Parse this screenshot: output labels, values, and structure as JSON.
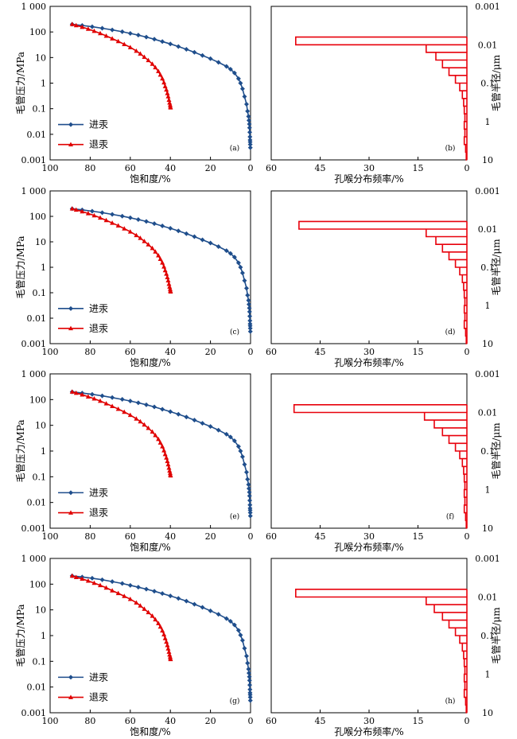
{
  "colors": {
    "intrusion": "#1f4e8c",
    "withdrawal": "#e00000",
    "pore": "#e8000b",
    "axis": "#000000"
  },
  "labels": {
    "ylabel_left": "毛管压力/MPa",
    "xlabel_left": "饱和度/%",
    "ylabel_right": "毛管半径/μm",
    "xlabel_right": "孔喉分布频率/%",
    "legend_intrusion": "进汞",
    "legend_withdrawal": "退汞"
  },
  "panels": [
    {
      "left_tag": "(a)",
      "right_tag": "(b)"
    },
    {
      "left_tag": "(c)",
      "right_tag": "(d)"
    },
    {
      "left_tag": "(e)",
      "right_tag": "(f)"
    },
    {
      "left_tag": "(g)",
      "right_tag": "(h)"
    }
  ],
  "chart_data": [
    {
      "type": "line",
      "panel": "(a)",
      "xlabel": "饱和度/%",
      "ylabel": "毛管压力/MPa",
      "xlim": [
        100,
        0
      ],
      "ylim": [
        0.001,
        1000
      ],
      "yscale": "log",
      "x_ticks": [
        "100",
        "80",
        "60",
        "40",
        "20",
        "0"
      ],
      "y_ticks": [
        "1 000",
        "100",
        "10",
        "1",
        "0.1",
        "0.01",
        "0.001"
      ],
      "series": [
        {
          "name": "进汞",
          "marker": "diamond",
          "x": [
            89,
            84,
            79,
            74,
            69,
            64,
            60,
            56,
            52,
            48,
            44,
            40,
            36,
            32,
            28,
            24,
            20,
            16,
            12,
            10,
            8,
            6,
            5,
            4,
            3,
            2,
            1.5,
            1,
            0.8,
            0.6,
            0.5,
            0.4,
            0.3,
            0.25,
            0.2,
            0.15,
            0.1
          ],
          "y": [
            200,
            180,
            160,
            140,
            120,
            102,
            88,
            75,
            63,
            52,
            42,
            34,
            27,
            21,
            16,
            12,
            9,
            6.5,
            4.5,
            3.5,
            2.5,
            1.5,
            1,
            0.6,
            0.3,
            0.15,
            0.08,
            0.05,
            0.035,
            0.025,
            0.018,
            0.012,
            0.008,
            0.006,
            0.005,
            0.004,
            0.003
          ]
        },
        {
          "name": "退汞",
          "marker": "triangle",
          "x": [
            89,
            87,
            84,
            81,
            78,
            75,
            72,
            69,
            66,
            63,
            60,
            57,
            55,
            53,
            51,
            49,
            47.5,
            46,
            45,
            44,
            43.2,
            42.6,
            42,
            41.5,
            41.1,
            40.7,
            40.4,
            40.1,
            40,
            39.9
          ],
          "y": [
            200,
            180,
            155,
            130,
            108,
            88,
            70,
            55,
            43,
            33,
            25,
            18,
            14,
            10.5,
            7.8,
            5.6,
            4.1,
            2.9,
            2.1,
            1.5,
            1.05,
            0.75,
            0.55,
            0.4,
            0.3,
            0.22,
            0.17,
            0.14,
            0.12,
            0.11
          ]
        }
      ]
    },
    {
      "type": "bar",
      "panel": "(b)",
      "xlabel": "孔喉分布频率/%",
      "ylabel": "毛管半径/μm",
      "xlim": [
        60,
        0
      ],
      "ylim": [
        0.001,
        10
      ],
      "yscale": "log",
      "x_ticks": [
        "60",
        "45",
        "30",
        "15",
        "0"
      ],
      "y_ticks": [
        "0.001",
        "0.01",
        "0.1",
        "1",
        "10"
      ],
      "radius_bins": [
        0.0063,
        0.01,
        0.0158,
        0.0251,
        0.0398,
        0.063,
        0.1,
        0.158,
        0.251,
        0.398,
        0.63,
        1,
        1.58,
        2.51,
        3.98,
        6.3,
        10
      ],
      "frequency": [
        52.5,
        12.5,
        9.5,
        7.5,
        5.5,
        3.5,
        2.2,
        1.4,
        1.0,
        0.8,
        0.6,
        0.8,
        0.6,
        0.8,
        0.4,
        0.2
      ]
    },
    {
      "type": "line",
      "panel": "(c)",
      "xlabel": "饱和度/%",
      "ylabel": "毛管压力/MPa",
      "xlim": [
        100,
        0
      ],
      "ylim": [
        0.001,
        1000
      ],
      "yscale": "log",
      "x_ticks": [
        "100",
        "80",
        "60",
        "40",
        "20",
        "0"
      ],
      "y_ticks": [
        "1 000",
        "100",
        "10",
        "1",
        "0.1",
        "0.01",
        "0.001"
      ],
      "series": [
        {
          "name": "进汞",
          "marker": "diamond",
          "x": [
            89,
            84,
            79,
            74,
            69,
            64,
            60,
            56,
            52,
            48,
            44,
            40,
            36,
            32,
            28,
            24,
            20,
            16,
            12,
            10,
            8,
            6,
            5,
            4,
            3,
            2,
            1.5,
            1,
            0.8,
            0.6,
            0.5,
            0.4,
            0.3,
            0.25,
            0.2,
            0.15,
            0.1
          ],
          "y": [
            200,
            180,
            160,
            140,
            120,
            102,
            88,
            75,
            63,
            52,
            42,
            34,
            27,
            21,
            16,
            12,
            9,
            6.5,
            4.5,
            3.5,
            2.5,
            1.5,
            1,
            0.6,
            0.3,
            0.15,
            0.08,
            0.05,
            0.035,
            0.025,
            0.018,
            0.012,
            0.008,
            0.006,
            0.005,
            0.004,
            0.003
          ]
        },
        {
          "name": "退汞",
          "marker": "triangle",
          "x": [
            89,
            87,
            84,
            81,
            78,
            75,
            72,
            69,
            66,
            63,
            60,
            57,
            55,
            53,
            51,
            49,
            47.5,
            46,
            45,
            44,
            43.2,
            42.6,
            42,
            41.5,
            41.1,
            40.7,
            40.4,
            40.1,
            40,
            39.9
          ],
          "y": [
            200,
            180,
            155,
            130,
            108,
            88,
            70,
            55,
            43,
            33,
            25,
            18,
            14,
            10.5,
            7.8,
            5.6,
            4.1,
            2.9,
            2.1,
            1.5,
            1.05,
            0.75,
            0.55,
            0.4,
            0.3,
            0.22,
            0.17,
            0.14,
            0.12,
            0.11
          ]
        }
      ]
    },
    {
      "type": "bar",
      "panel": "(d)",
      "xlabel": "孔喉分布频率/%",
      "ylabel": "毛管半径/μm",
      "xlim": [
        60,
        0
      ],
      "ylim": [
        0.001,
        10
      ],
      "yscale": "log",
      "x_ticks": [
        "60",
        "45",
        "30",
        "15",
        "0"
      ],
      "y_ticks": [
        "0.001",
        "0.01",
        "0.1",
        "1",
        "10"
      ],
      "radius_bins": [
        0.0063,
        0.01,
        0.0158,
        0.0251,
        0.0398,
        0.063,
        0.1,
        0.158,
        0.251,
        0.398,
        0.63,
        1,
        1.58,
        2.51,
        3.98,
        6.3,
        10
      ],
      "frequency": [
        51.5,
        12.5,
        9.5,
        7.5,
        5.5,
        3.5,
        2.2,
        1.4,
        1.0,
        0.8,
        0.6,
        0.8,
        0.6,
        0.8,
        0.4,
        0.2
      ]
    },
    {
      "type": "line",
      "panel": "(e)",
      "xlabel": "饱和度/%",
      "ylabel": "毛管压力/MPa",
      "xlim": [
        100,
        0
      ],
      "ylim": [
        0.001,
        1000
      ],
      "yscale": "log",
      "x_ticks": [
        "100",
        "80",
        "60",
        "40",
        "20",
        "0"
      ],
      "y_ticks": [
        "1 000",
        "100",
        "10",
        "1",
        "0.1",
        "0.01",
        "0.001"
      ],
      "series": [
        {
          "name": "进汞",
          "marker": "diamond",
          "x": [
            89,
            84,
            79,
            74,
            69,
            64,
            60,
            56,
            52,
            48,
            44,
            40,
            36,
            32,
            28,
            24,
            20,
            16,
            12,
            10,
            8,
            6,
            5,
            4,
            3,
            2,
            1.5,
            1,
            0.8,
            0.6,
            0.5,
            0.4,
            0.3,
            0.25,
            0.2,
            0.15,
            0.1
          ],
          "y": [
            200,
            180,
            160,
            140,
            120,
            102,
            88,
            75,
            63,
            52,
            42,
            34,
            27,
            21,
            16,
            12,
            9,
            6.5,
            4.5,
            3.5,
            2.5,
            1.5,
            1,
            0.6,
            0.3,
            0.15,
            0.08,
            0.05,
            0.035,
            0.025,
            0.018,
            0.012,
            0.008,
            0.006,
            0.005,
            0.004,
            0.003
          ]
        },
        {
          "name": "退汞",
          "marker": "triangle",
          "x": [
            89,
            87,
            84,
            81,
            78,
            75,
            72,
            69,
            66,
            63,
            60,
            57,
            55,
            53,
            51,
            49,
            47.5,
            46,
            45,
            44,
            43.2,
            42.6,
            42,
            41.5,
            41.1,
            40.7,
            40.4,
            40.1,
            40,
            39.9
          ],
          "y": [
            200,
            180,
            155,
            130,
            108,
            88,
            70,
            55,
            43,
            33,
            25,
            18,
            14,
            10.5,
            7.8,
            5.6,
            4.1,
            2.9,
            2.1,
            1.5,
            1.05,
            0.75,
            0.55,
            0.4,
            0.3,
            0.22,
            0.17,
            0.14,
            0.12,
            0.11
          ]
        }
      ]
    },
    {
      "type": "bar",
      "panel": "(f)",
      "xlabel": "孔喉分布频率/%",
      "ylabel": "毛管半径/μm",
      "xlim": [
        60,
        0
      ],
      "ylim": [
        0.001,
        10
      ],
      "yscale": "log",
      "x_ticks": [
        "60",
        "45",
        "30",
        "15",
        "0"
      ],
      "y_ticks": [
        "0.001",
        "0.01",
        "0.1",
        "1",
        "10"
      ],
      "radius_bins": [
        0.0063,
        0.01,
        0.0158,
        0.0251,
        0.0398,
        0.063,
        0.1,
        0.158,
        0.251,
        0.398,
        0.63,
        1,
        1.58,
        2.51,
        3.98,
        6.3,
        10
      ],
      "frequency": [
        53,
        13,
        10,
        7.5,
        5.5,
        3.5,
        2.2,
        1.4,
        1.0,
        0.8,
        0.6,
        0.8,
        0.6,
        0.8,
        0.4,
        0.2
      ]
    },
    {
      "type": "line",
      "panel": "(g)",
      "xlabel": "饱和度/%",
      "ylabel": "毛管压力/MPa",
      "xlim": [
        100,
        0
      ],
      "ylim": [
        0.001,
        1000
      ],
      "yscale": "log",
      "x_ticks": [
        "100",
        "80",
        "60",
        "40",
        "20",
        "0"
      ],
      "y_ticks": [
        "1 000",
        "100",
        "10",
        "1",
        "0.1",
        "0.01",
        "0.001"
      ],
      "series": [
        {
          "name": "进汞",
          "marker": "diamond",
          "x": [
            89,
            84,
            79,
            74,
            69,
            64,
            60,
            56,
            52,
            48,
            44,
            40,
            36,
            32,
            28,
            24,
            20,
            16,
            12,
            10,
            8,
            6,
            5,
            4,
            3,
            2,
            1.5,
            1,
            0.8,
            0.6,
            0.5,
            0.4,
            0.3,
            0.25,
            0.2,
            0.15,
            0.1
          ],
          "y": [
            210,
            190,
            170,
            148,
            126,
            106,
            90,
            76,
            64,
            53,
            43,
            35,
            28,
            22,
            16.5,
            12.5,
            9.2,
            6.7,
            4.6,
            3.6,
            2.6,
            1.6,
            1.05,
            0.65,
            0.32,
            0.16,
            0.085,
            0.05,
            0.035,
            0.025,
            0.018,
            0.012,
            0.008,
            0.006,
            0.005,
            0.004,
            0.003
          ]
        },
        {
          "name": "退汞",
          "marker": "triangle",
          "x": [
            89,
            87,
            84,
            81,
            78,
            75,
            72,
            69,
            66,
            63,
            60,
            57,
            55,
            53,
            51,
            49,
            47.5,
            46,
            45,
            44,
            43.2,
            42.6,
            42,
            41.5,
            41.1,
            40.7,
            40.4,
            40.1,
            40,
            39.9
          ],
          "y": [
            210,
            185,
            160,
            134,
            110,
            90,
            72,
            56,
            44,
            34,
            26,
            19,
            14.5,
            10.8,
            8,
            5.8,
            4.2,
            3,
            2.2,
            1.55,
            1.1,
            0.78,
            0.57,
            0.42,
            0.31,
            0.23,
            0.18,
            0.15,
            0.13,
            0.12
          ]
        }
      ]
    },
    {
      "type": "bar",
      "panel": "(h)",
      "xlabel": "孔喉分布频率/%",
      "ylabel": "毛管半径/μm",
      "xlim": [
        60,
        0
      ],
      "ylim": [
        0.001,
        10
      ],
      "yscale": "log",
      "x_ticks": [
        "60",
        "45",
        "30",
        "15",
        "0"
      ],
      "y_ticks": [
        "0.001",
        "0.01",
        "0.1",
        "1",
        "10"
      ],
      "radius_bins": [
        0.0063,
        0.01,
        0.0158,
        0.0251,
        0.0398,
        0.063,
        0.1,
        0.158,
        0.251,
        0.398,
        0.63,
        1,
        1.58,
        2.51,
        3.98,
        6.3,
        10
      ],
      "frequency": [
        52.5,
        12.5,
        10,
        7.5,
        5.5,
        3.5,
        2.2,
        1.4,
        1.0,
        0.8,
        0.6,
        0.8,
        0.6,
        0.8,
        0.4,
        0.2
      ]
    }
  ]
}
